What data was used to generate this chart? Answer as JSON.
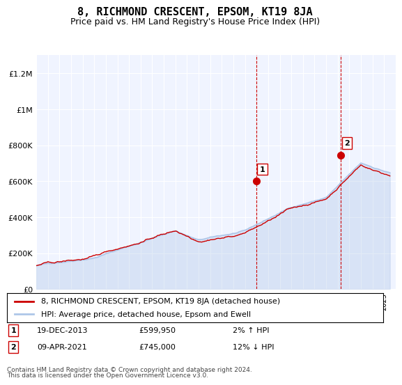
{
  "title": "8, RICHMOND CRESCENT, EPSOM, KT19 8JA",
  "subtitle": "Price paid vs. HM Land Registry's House Price Index (HPI)",
  "ylabel_ticks": [
    "£0",
    "£200K",
    "£400K",
    "£600K",
    "£800K",
    "£1M",
    "£1.2M"
  ],
  "ytick_values": [
    0,
    200000,
    400000,
    600000,
    800000,
    1000000,
    1200000
  ],
  "ylim": [
    0,
    1300000
  ],
  "xlim_start": 1995.0,
  "xlim_end": 2026.0,
  "hpi_color": "#aec6e8",
  "price_color": "#cc0000",
  "marker_color": "#cc0000",
  "sale1_x": 2013.97,
  "sale1_y": 599950,
  "sale1_label": "1",
  "sale2_x": 2021.27,
  "sale2_y": 745000,
  "sale2_label": "2",
  "vline_color": "#cc0000",
  "vline_style": "--",
  "background_color": "#ffffff",
  "plot_bg_color": "#f0f4ff",
  "grid_color": "#ffffff",
  "legend_line1": "8, RICHMOND CRESCENT, EPSOM, KT19 8JA (detached house)",
  "legend_line2": "HPI: Average price, detached house, Epsom and Ewell",
  "annotation1_date": "19-DEC-2013",
  "annotation1_price": "£599,950",
  "annotation1_hpi": "2% ↑ HPI",
  "annotation2_date": "09-APR-2021",
  "annotation2_price": "£745,000",
  "annotation2_hpi": "12% ↓ HPI",
  "footer": "Contains HM Land Registry data © Crown copyright and database right 2024.\nThis data is licensed under the Open Government Licence v3.0.",
  "title_fontsize": 11,
  "subtitle_fontsize": 9,
  "axis_fontsize": 8,
  "legend_fontsize": 8,
  "annotation_fontsize": 8
}
